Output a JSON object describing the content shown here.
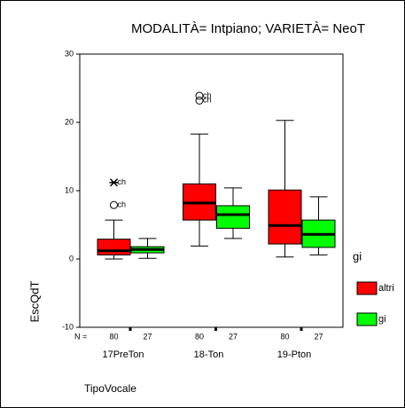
{
  "chart_data": {
    "type": "box",
    "title": "MODALITÀ= Intpiano; VARIETÀ= NeoT",
    "x_label": "TipoVocale",
    "y_label": "EscQdT",
    "categories": [
      "17PreTon",
      "18-Ton",
      "19-Pton"
    ],
    "n_label": "N =",
    "legend_title": "gi",
    "ylim": [
      -10,
      30
    ],
    "yticks": [
      -10,
      0,
      10,
      20,
      30
    ],
    "series": [
      {
        "name": "altri",
        "color": "#ff0000",
        "whisker_low": [
          0,
          1.9,
          0.3
        ],
        "q1": [
          0.6,
          5.7,
          2.2
        ],
        "median": [
          1.2,
          8.2,
          4.9
        ],
        "q3": [
          2.9,
          11.0,
          10.1
        ],
        "whisker_high": [
          5.7,
          18.3,
          20.3
        ],
        "n": [
          80,
          80,
          80
        ],
        "outliers": [
          [
            {
              "value": 7.9,
              "label": "ch",
              "marker": "circle"
            },
            {
              "value": 11.2,
              "label": "ch",
              "marker": "star"
            }
          ],
          [
            {
              "value": 23.2,
              "label": "ch",
              "marker": "circle"
            },
            {
              "value": 23.9,
              "label": "ch",
              "marker": "circle"
            }
          ],
          []
        ]
      },
      {
        "name": "gi",
        "color": "#00ff00",
        "whisker_low": [
          0.1,
          3.0,
          0.6
        ],
        "q1": [
          0.9,
          4.5,
          1.7
        ],
        "median": [
          1.4,
          6.5,
          3.6
        ],
        "q3": [
          1.8,
          7.8,
          5.7
        ],
        "whisker_high": [
          3.0,
          10.4,
          9.1
        ],
        "n": [
          27,
          27,
          27
        ],
        "outliers": [
          [],
          [],
          []
        ]
      }
    ]
  }
}
